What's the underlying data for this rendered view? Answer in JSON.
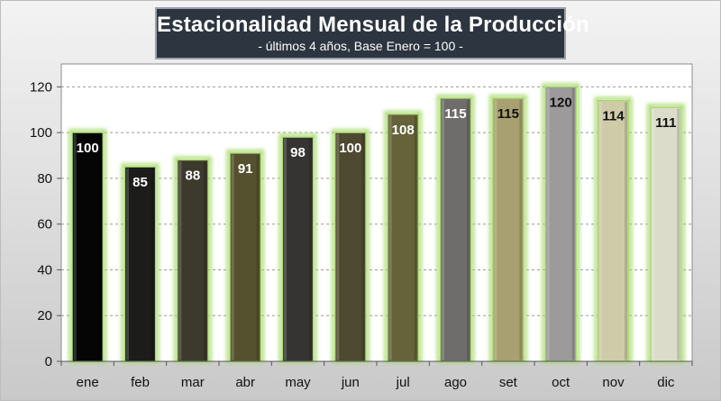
{
  "chart_data": {
    "type": "bar",
    "title": "Estacionalidad Mensual de la Producción",
    "subtitle": "- últimos 4 años, Base Enero = 100 -",
    "xlabel": "",
    "ylabel": "",
    "ylim": [
      0,
      130
    ],
    "yticks": [
      0,
      20,
      40,
      60,
      80,
      100,
      120
    ],
    "grid": true,
    "categories": [
      "ene",
      "feb",
      "mar",
      "abr",
      "may",
      "jun",
      "jul",
      "ago",
      "set",
      "oct",
      "nov",
      "dic"
    ],
    "values": [
      100,
      85,
      88,
      91,
      98,
      100,
      108,
      115,
      115,
      120,
      114,
      111
    ],
    "bar_colors": [
      "#050505",
      "#1c1c1a",
      "#3c3a2c",
      "#55512f",
      "#363433",
      "#4d4a31",
      "#66623a",
      "#6f6d6b",
      "#a8a070",
      "#9c9a9b",
      "#cfcaa8",
      "#dcdccb"
    ],
    "label_colors": [
      "#ffffff",
      "#ffffff",
      "#ffffff",
      "#ffffff",
      "#ffffff",
      "#ffffff",
      "#ffffff",
      "#ffffff",
      "#111111",
      "#111111",
      "#111111",
      "#111111"
    ],
    "glow_color": "#a6d96a"
  }
}
